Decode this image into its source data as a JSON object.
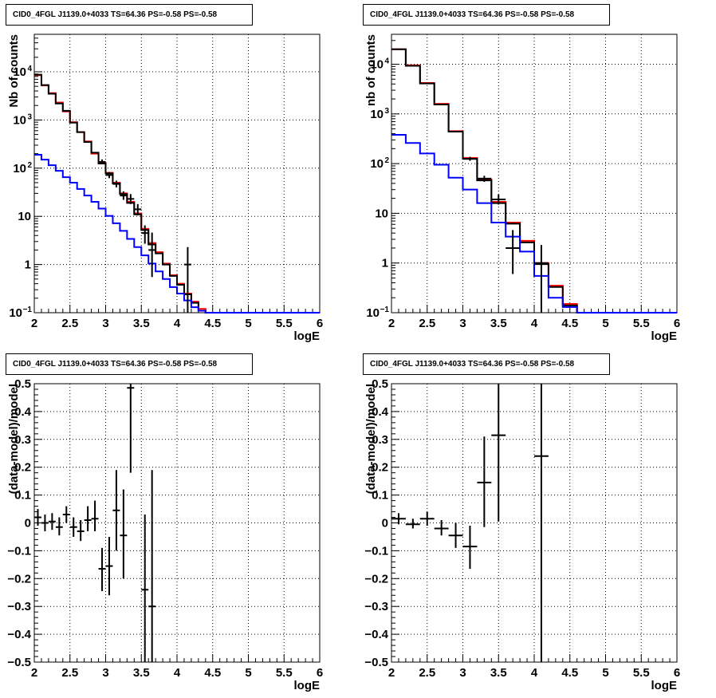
{
  "colors": {
    "data": "#000000",
    "total": "#ff0000",
    "component": "#0000ff",
    "grid": "#000000"
  },
  "chart_data": [
    {
      "type": "line",
      "title": "CID0_4FGL J1139.0+4033 TS=64.36 PS=-0.58 PS=-0.58",
      "xlabel": "logE",
      "ylabel": "Nb of counts",
      "xlim": [
        2,
        6
      ],
      "ylim": [
        0.1,
        60000
      ],
      "log_y": true,
      "grid": true,
      "x_ticks": [
        "2",
        "2.5",
        "3",
        "3.5",
        "4",
        "4.5",
        "5",
        "5.5",
        "6"
      ],
      "y_ticks": [
        {
          "v": 0.1,
          "label": "10",
          "sup": "−1"
        },
        {
          "v": 1,
          "label": "1",
          "sup": ""
        },
        {
          "v": 10,
          "label": "10",
          "sup": ""
        },
        {
          "v": 100,
          "label": "10",
          "sup": "2"
        },
        {
          "v": 1000,
          "label": "10",
          "sup": "3"
        },
        {
          "v": 10000,
          "label": "10",
          "sup": "4"
        }
      ],
      "series": [
        {
          "color": "total",
          "kind": "step",
          "edges": [
            2.0,
            2.1,
            2.2,
            2.3,
            2.4,
            2.5,
            2.6,
            2.7,
            2.8,
            2.9,
            3.0,
            3.1,
            3.2,
            3.3,
            3.4,
            3.5,
            3.6,
            3.7,
            3.8,
            3.9,
            4.0,
            4.1,
            4.2,
            4.3,
            4.4,
            4.5,
            4.6,
            4.7,
            4.8,
            4.9,
            5.0,
            5.1,
            5.2,
            5.3,
            5.4,
            5.5,
            5.6,
            5.7,
            5.8,
            5.9,
            6.0
          ],
          "values": [
            8500,
            5200,
            3600,
            2300,
            1500,
            900,
            560,
            360,
            200,
            130,
            80,
            50,
            30,
            20,
            11.5,
            5.5,
            2.8,
            1.8,
            1.05,
            0.6,
            0.4,
            0.25,
            0.17,
            0.12,
            0.1,
            0.1,
            0.1,
            0.1,
            0.1,
            0.1,
            0.1,
            0.1,
            0.1,
            0.1,
            0.1,
            0.1,
            0.1,
            0.1,
            0.1,
            0.1
          ]
        },
        {
          "color": "data",
          "kind": "step",
          "edges": [
            2.0,
            2.1,
            2.2,
            2.3,
            2.4,
            2.5,
            2.6,
            2.7,
            2.8,
            2.9,
            3.0,
            3.1,
            3.2,
            3.3,
            3.4,
            3.5,
            3.6,
            3.7,
            3.8,
            3.9,
            4.0,
            4.1,
            4.2,
            4.3,
            4.4,
            4.5,
            4.6,
            4.7,
            4.8,
            4.9,
            5.0,
            5.1,
            5.2,
            5.3,
            5.4,
            5.5,
            5.6,
            5.7,
            5.8,
            5.9,
            6.0
          ],
          "values": [
            8700,
            5300,
            3500,
            2200,
            1550,
            880,
            560,
            350,
            210,
            125,
            78,
            48,
            29,
            19,
            11,
            5.2,
            2.6,
            1.7,
            1.0,
            0.58,
            0.38,
            0.24,
            0.16,
            0.11,
            0.1,
            0.1,
            0.1,
            0.1,
            0.1,
            0.1,
            0.1,
            0.1,
            0.1,
            0.1,
            0.1,
            0.1,
            0.1,
            0.1,
            0.1,
            0.1
          ]
        },
        {
          "color": "component",
          "kind": "step",
          "edges": [
            2.0,
            2.1,
            2.2,
            2.3,
            2.4,
            2.5,
            2.6,
            2.7,
            2.8,
            2.9,
            3.0,
            3.1,
            3.2,
            3.3,
            3.4,
            3.5,
            3.6,
            3.7,
            3.8,
            3.9,
            4.0,
            4.1,
            4.2,
            4.3,
            4.4,
            4.5,
            4.6,
            4.7,
            4.8,
            4.9,
            5.0,
            5.1,
            5.2,
            5.3,
            5.4,
            5.5,
            5.6,
            5.7,
            5.8,
            5.9,
            6.0
          ],
          "values": [
            190,
            150,
            115,
            88,
            65,
            50,
            37,
            27,
            20,
            14.5,
            10.2,
            7.2,
            5.0,
            3.4,
            2.3,
            1.55,
            1.05,
            0.72,
            0.5,
            0.34,
            0.25,
            0.18,
            0.13,
            0.11,
            0.1,
            0.1,
            0.1,
            0.1,
            0.1,
            0.1,
            0.1,
            0.1,
            0.1,
            0.1,
            0.1,
            0.1,
            0.1,
            0.1,
            0.1,
            0.1
          ]
        },
        {
          "color": "data",
          "kind": "points",
          "points": [
            {
              "x": 2.95,
              "y": 135,
              "xerr": 0.05,
              "lo": 120,
              "hi": 152
            },
            {
              "x": 3.05,
              "y": 72,
              "xerr": 0.05,
              "lo": 62,
              "hi": 83
            },
            {
              "x": 3.15,
              "y": 47,
              "xerr": 0.05,
              "lo": 40,
              "hi": 55
            },
            {
              "x": 3.25,
              "y": 27,
              "xerr": 0.05,
              "lo": 22,
              "hi": 33
            },
            {
              "x": 3.35,
              "y": 23,
              "xerr": 0.05,
              "lo": 18,
              "hi": 29
            },
            {
              "x": 3.45,
              "y": 14,
              "xerr": 0.05,
              "lo": 10.5,
              "hi": 18
            },
            {
              "x": 3.55,
              "y": 4.5,
              "xerr": 0.05,
              "lo": 2.7,
              "hi": 6.5
            },
            {
              "x": 3.65,
              "y": 2.0,
              "xerr": 0.05,
              "lo": 0.55,
              "hi": 4.6
            },
            {
              "x": 4.15,
              "y": 1.0,
              "xerr": 0.05,
              "lo": 0.1,
              "hi": 2.3
            }
          ]
        }
      ]
    },
    {
      "type": "line",
      "title": "CID0_4FGL J1139.0+4033 TS=64.36 PS=-0.58 PS=-0.58",
      "xlabel": "logE",
      "ylabel": "nb of counts",
      "xlim": [
        2,
        6
      ],
      "ylim": [
        0.1,
        40000
      ],
      "log_y": true,
      "grid": true,
      "x_ticks": [
        "2",
        "2.5",
        "3",
        "3.5",
        "4",
        "4.5",
        "5",
        "5.5",
        "6"
      ],
      "y_ticks": [
        {
          "v": 0.1,
          "label": "10",
          "sup": "−1"
        },
        {
          "v": 1,
          "label": "1",
          "sup": ""
        },
        {
          "v": 10,
          "label": "10",
          "sup": ""
        },
        {
          "v": 100,
          "label": "10",
          "sup": "2"
        },
        {
          "v": 1000,
          "label": "10",
          "sup": "3"
        },
        {
          "v": 10000,
          "label": "10",
          "sup": "4"
        }
      ],
      "series": [
        {
          "color": "total",
          "kind": "step",
          "edges": [
            2.0,
            2.2,
            2.4,
            2.6,
            2.8,
            3.0,
            3.2,
            3.4,
            3.6,
            3.8,
            4.0,
            4.2,
            4.4,
            4.6,
            4.8,
            5.0,
            5.2,
            5.4,
            5.6,
            5.8,
            6.0
          ],
          "values": [
            20000,
            9500,
            4200,
            1600,
            450,
            130,
            48,
            17,
            6.5,
            2.8,
            1.0,
            0.35,
            0.15,
            0.1,
            0.1,
            0.1,
            0.1,
            0.1,
            0.1,
            0.1
          ]
        },
        {
          "color": "data",
          "kind": "step",
          "edges": [
            2.0,
            2.2,
            2.4,
            2.6,
            2.8,
            3.0,
            3.2,
            3.4,
            3.6,
            3.8,
            4.0,
            4.2,
            4.4,
            4.6,
            4.8,
            5.0,
            5.2,
            5.4,
            5.6,
            5.8,
            6.0
          ],
          "values": [
            20000,
            9300,
            4100,
            1550,
            440,
            125,
            46,
            16,
            6.2,
            2.6,
            0.95,
            0.33,
            0.14,
            0.1,
            0.1,
            0.1,
            0.1,
            0.1,
            0.1,
            0.1
          ]
        },
        {
          "color": "component",
          "kind": "step",
          "edges": [
            2.0,
            2.2,
            2.4,
            2.6,
            2.8,
            3.0,
            3.2,
            3.4,
            3.6,
            3.8,
            4.0,
            4.2,
            4.4,
            4.6,
            4.8,
            5.0,
            5.2,
            5.4,
            5.6,
            5.8,
            6.0
          ],
          "values": [
            380,
            260,
            160,
            95,
            52,
            30,
            16,
            6.5,
            3.4,
            1.7,
            0.55,
            0.2,
            0.13,
            0.1,
            0.1,
            0.1,
            0.1,
            0.1,
            0.1,
            0.1
          ]
        },
        {
          "color": "data",
          "kind": "points",
          "points": [
            {
              "x": 3.1,
              "y": 125,
              "xerr": 0.1,
              "lo": 114,
              "hi": 137
            },
            {
              "x": 3.3,
              "y": 50,
              "xerr": 0.1,
              "lo": 43,
              "hi": 57
            },
            {
              "x": 3.5,
              "y": 19,
              "xerr": 0.1,
              "lo": 15,
              "hi": 24
            },
            {
              "x": 3.7,
              "y": 2.0,
              "xerr": 0.1,
              "lo": 0.6,
              "hi": 4.6
            },
            {
              "x": 4.1,
              "y": 1.0,
              "xerr": 0.1,
              "lo": 0.1,
              "hi": 2.3
            }
          ]
        }
      ]
    },
    {
      "type": "scatter",
      "title": "CID0_4FGL J1139.0+4033 TS=64.36 PS=-0.58 PS=-0.58",
      "xlabel": "logE",
      "ylabel": "(data-model)/model",
      "xlim": [
        2,
        6
      ],
      "ylim": [
        -0.5,
        0.5
      ],
      "log_y": false,
      "grid": true,
      "x_ticks": [
        "2",
        "2.5",
        "3",
        "3.5",
        "4",
        "4.5",
        "5",
        "5.5",
        "6"
      ],
      "y_ticks": [
        {
          "v": -0.5,
          "label": "−0.5",
          "sup": ""
        },
        {
          "v": -0.4,
          "label": "−0.4",
          "sup": ""
        },
        {
          "v": -0.3,
          "label": "−0.3",
          "sup": ""
        },
        {
          "v": -0.2,
          "label": "−0.2",
          "sup": ""
        },
        {
          "v": -0.1,
          "label": "−0.1",
          "sup": ""
        },
        {
          "v": 0,
          "label": "0",
          "sup": ""
        },
        {
          "v": 0.1,
          "label": "0.1",
          "sup": ""
        },
        {
          "v": 0.2,
          "label": "0.2",
          "sup": ""
        },
        {
          "v": 0.3,
          "label": "0.3",
          "sup": ""
        },
        {
          "v": 0.4,
          "label": "0.4",
          "sup": ""
        },
        {
          "v": 0.5,
          "label": "0.5",
          "sup": ""
        }
      ],
      "series": [
        {
          "color": "data",
          "kind": "points",
          "points": [
            {
              "x": 2.05,
              "y": 0.02,
              "xerr": 0.05,
              "lo": -0.01,
              "hi": 0.05
            },
            {
              "x": 2.15,
              "y": 0.0,
              "xerr": 0.05,
              "lo": -0.03,
              "hi": 0.03
            },
            {
              "x": 2.25,
              "y": 0.005,
              "xerr": 0.05,
              "lo": -0.025,
              "hi": 0.035
            },
            {
              "x": 2.35,
              "y": -0.015,
              "xerr": 0.05,
              "lo": -0.045,
              "hi": 0.02
            },
            {
              "x": 2.45,
              "y": 0.03,
              "xerr": 0.05,
              "lo": 0.0,
              "hi": 0.06
            },
            {
              "x": 2.55,
              "y": -0.015,
              "xerr": 0.05,
              "lo": -0.05,
              "hi": 0.02
            },
            {
              "x": 2.65,
              "y": -0.03,
              "xerr": 0.05,
              "lo": -0.065,
              "hi": 0.01
            },
            {
              "x": 2.75,
              "y": 0.01,
              "xerr": 0.05,
              "lo": -0.03,
              "hi": 0.06
            },
            {
              "x": 2.85,
              "y": 0.015,
              "xerr": 0.05,
              "lo": -0.03,
              "hi": 0.08
            },
            {
              "x": 2.95,
              "y": -0.165,
              "xerr": 0.05,
              "lo": -0.245,
              "hi": -0.09
            },
            {
              "x": 3.05,
              "y": -0.155,
              "xerr": 0.05,
              "lo": -0.26,
              "hi": -0.05
            },
            {
              "x": 3.15,
              "y": 0.045,
              "xerr": 0.05,
              "lo": -0.1,
              "hi": 0.19
            },
            {
              "x": 3.25,
              "y": -0.045,
              "xerr": 0.05,
              "lo": -0.2,
              "hi": 0.12
            },
            {
              "x": 3.35,
              "y": 0.485,
              "xerr": 0.05,
              "lo": 0.18,
              "hi": 0.5
            },
            {
              "x": 3.55,
              "y": -0.24,
              "xerr": 0.05,
              "lo": -0.5,
              "hi": 0.03
            },
            {
              "x": 3.65,
              "y": -0.3,
              "xerr": 0.05,
              "lo": -0.5,
              "hi": 0.19
            }
          ]
        }
      ]
    },
    {
      "type": "scatter",
      "title": "CID0_4FGL J1139.0+4033 TS=64.36 PS=-0.58 PS=-0.58",
      "xlabel": "logE",
      "ylabel": "(data-model)/model",
      "xlim": [
        2,
        6
      ],
      "ylim": [
        -0.5,
        0.5
      ],
      "log_y": false,
      "grid": true,
      "x_ticks": [
        "2",
        "2.5",
        "3",
        "3.5",
        "4",
        "4.5",
        "5",
        "5.5",
        "6"
      ],
      "y_ticks": [
        {
          "v": -0.5,
          "label": "−0.5",
          "sup": ""
        },
        {
          "v": -0.4,
          "label": "−0.4",
          "sup": ""
        },
        {
          "v": -0.3,
          "label": "−0.3",
          "sup": ""
        },
        {
          "v": -0.2,
          "label": "−0.2",
          "sup": ""
        },
        {
          "v": -0.1,
          "label": "−0.1",
          "sup": ""
        },
        {
          "v": 0,
          "label": "0",
          "sup": ""
        },
        {
          "v": 0.1,
          "label": "0.1",
          "sup": ""
        },
        {
          "v": 0.2,
          "label": "0.2",
          "sup": ""
        },
        {
          "v": 0.3,
          "label": "0.3",
          "sup": ""
        },
        {
          "v": 0.4,
          "label": "0.4",
          "sup": ""
        },
        {
          "v": 0.5,
          "label": "0.5",
          "sup": ""
        }
      ],
      "series": [
        {
          "color": "data",
          "kind": "points",
          "points": [
            {
              "x": 2.1,
              "y": 0.015,
              "xerr": 0.1,
              "lo": -0.005,
              "hi": 0.035
            },
            {
              "x": 2.3,
              "y": -0.005,
              "xerr": 0.1,
              "lo": -0.02,
              "hi": 0.015
            },
            {
              "x": 2.5,
              "y": 0.015,
              "xerr": 0.1,
              "lo": -0.01,
              "hi": 0.04
            },
            {
              "x": 2.7,
              "y": -0.02,
              "xerr": 0.1,
              "lo": -0.045,
              "hi": 0.01
            },
            {
              "x": 2.9,
              "y": -0.045,
              "xerr": 0.1,
              "lo": -0.09,
              "hi": 0.0
            },
            {
              "x": 3.1,
              "y": -0.085,
              "xerr": 0.1,
              "lo": -0.165,
              "hi": -0.01
            },
            {
              "x": 3.3,
              "y": 0.145,
              "xerr": 0.1,
              "lo": -0.015,
              "hi": 0.31
            },
            {
              "x": 3.5,
              "y": 0.315,
              "xerr": 0.1,
              "lo": 0.005,
              "hi": 0.5
            },
            {
              "x": 4.1,
              "y": 0.24,
              "xerr": 0.1,
              "lo": -0.5,
              "hi": 0.5
            }
          ]
        }
      ]
    }
  ]
}
